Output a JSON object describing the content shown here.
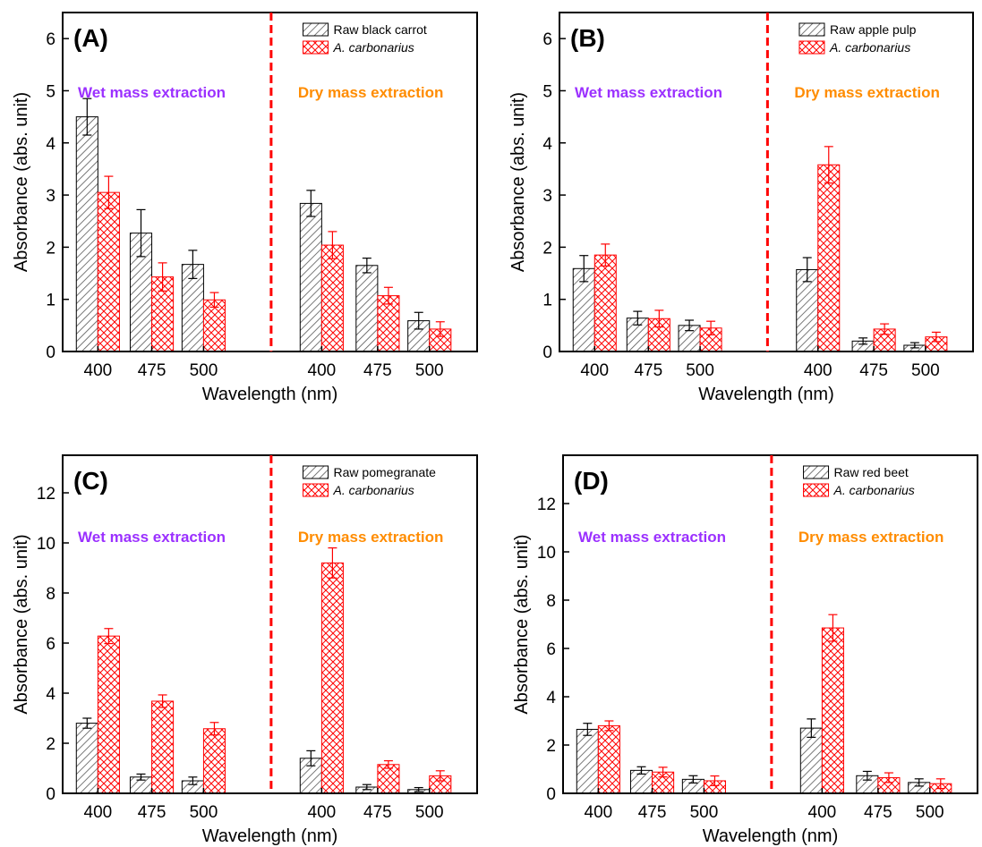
{
  "colors": {
    "raw_bar": "#555555",
    "fungal_bar": "#ff0000",
    "divider": "#ff0000",
    "wet_label": "#9b30ff",
    "dry_label": "#ff8c00",
    "axis": "#000000"
  },
  "chart_data": [
    {
      "type": "bar",
      "panel_label": "(A)",
      "xlabel": "Wavelength (nm)",
      "ylabel": "Absorbance (abs. unit)",
      "ylim": [
        0,
        6.5
      ],
      "yticks": [
        0,
        1,
        2,
        3,
        4,
        5,
        6
      ],
      "regions": [
        "Wet mass extraction",
        "Dry mass extraction"
      ],
      "categories": [
        "400",
        "475",
        "500",
        "400",
        "475",
        "500"
      ],
      "series": [
        {
          "name": "Raw black carrot",
          "values": [
            4.5,
            2.27,
            1.67,
            2.84,
            1.65,
            0.59
          ],
          "errors": [
            0.35,
            0.45,
            0.27,
            0.25,
            0.14,
            0.16
          ]
        },
        {
          "name": "A. carbonarius",
          "values": [
            3.05,
            1.43,
            0.99,
            2.04,
            1.07,
            0.43
          ],
          "errors": [
            0.31,
            0.27,
            0.14,
            0.26,
            0.16,
            0.14
          ]
        }
      ],
      "legend_position": "top-right",
      "grid": false
    },
    {
      "type": "bar",
      "panel_label": "(B)",
      "xlabel": "Wavelength (nm)",
      "ylabel": "Absorbance (abs. unit)",
      "ylim": [
        0,
        6.5
      ],
      "yticks": [
        0,
        1,
        2,
        3,
        4,
        5,
        6
      ],
      "regions": [
        "Wet mass extraction",
        "Dry mass extraction"
      ],
      "categories": [
        "400",
        "475",
        "500",
        "400",
        "475",
        "500"
      ],
      "series": [
        {
          "name": "Raw apple pulp",
          "values": [
            1.59,
            0.64,
            0.5,
            1.57,
            0.2,
            0.12
          ],
          "errors": [
            0.25,
            0.13,
            0.1,
            0.23,
            0.06,
            0.05
          ]
        },
        {
          "name": "A. carbonarius",
          "values": [
            1.85,
            0.63,
            0.45,
            3.58,
            0.43,
            0.28
          ],
          "errors": [
            0.21,
            0.16,
            0.13,
            0.35,
            0.1,
            0.09
          ]
        }
      ],
      "legend_position": "top-right",
      "grid": false
    },
    {
      "type": "bar",
      "panel_label": "(C)",
      "xlabel": "Wavelength (nm)",
      "ylabel": "Absorbance (abs. unit)",
      "ylim": [
        0,
        13.5
      ],
      "yticks": [
        0,
        2,
        4,
        6,
        8,
        10,
        12
      ],
      "regions": [
        "Wet mass extraction",
        "Dry mass extraction"
      ],
      "categories": [
        "400",
        "475",
        "500",
        "400",
        "475",
        "500"
      ],
      "series": [
        {
          "name": "Raw pomegranate",
          "values": [
            2.8,
            0.65,
            0.5,
            1.4,
            0.25,
            0.15
          ],
          "errors": [
            0.2,
            0.12,
            0.15,
            0.3,
            0.1,
            0.08
          ]
        },
        {
          "name": "A. carbonarius",
          "values": [
            6.28,
            3.68,
            2.58,
            9.2,
            1.15,
            0.7
          ],
          "errors": [
            0.3,
            0.25,
            0.25,
            0.6,
            0.15,
            0.2
          ]
        }
      ],
      "legend_position": "top-right",
      "grid": false
    },
    {
      "type": "bar",
      "panel_label": "(D)",
      "xlabel": "Wavelength (nm)",
      "ylabel": "Absorbance (abs. unit)",
      "ylim": [
        0,
        14
      ],
      "yticks": [
        0,
        2,
        4,
        6,
        8,
        10,
        12
      ],
      "regions": [
        "Wet mass extraction",
        "Dry mass extraction"
      ],
      "categories": [
        "400",
        "475",
        "500",
        "400",
        "475",
        "500"
      ],
      "series": [
        {
          "name": "Raw red beet",
          "values": [
            2.65,
            0.95,
            0.58,
            2.7,
            0.73,
            0.45
          ],
          "errors": [
            0.25,
            0.15,
            0.15,
            0.38,
            0.18,
            0.15
          ]
        },
        {
          "name": "A. carbonarius",
          "values": [
            2.8,
            0.88,
            0.52,
            6.85,
            0.65,
            0.4
          ],
          "errors": [
            0.2,
            0.2,
            0.2,
            0.55,
            0.2,
            0.2
          ]
        }
      ],
      "legend_position": "top-right",
      "grid": false
    }
  ]
}
